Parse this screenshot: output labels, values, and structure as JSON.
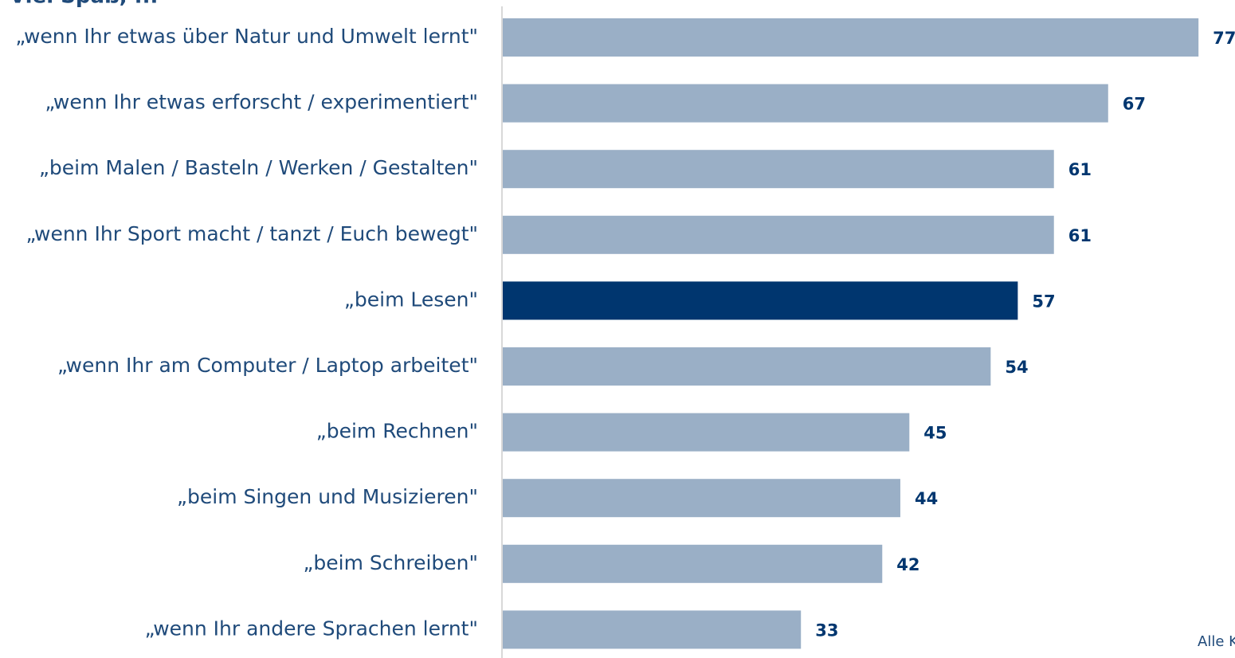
{
  "chart_data": {
    "type": "bar",
    "orientation": "horizontal",
    "title": "Viel Spaß, ...",
    "categories": [
      "„wenn Ihr etwas über Natur und Umwelt lernt\"",
      "„wenn Ihr etwas erforscht / experimentiert\"",
      "„beim Malen / Basteln / Werken / Gestalten\"",
      "„wenn Ihr Sport macht / tanzt / Euch bewegt\"",
      "„beim Lesen\"",
      "„wenn Ihr am Computer / Laptop arbeitet\"",
      "„beim Rechnen\"",
      "„beim Singen und Musizieren\"",
      "„beim Schreiben\"",
      "„wenn Ihr andere Sprachen lernt\""
    ],
    "values": [
      77,
      67,
      61,
      61,
      57,
      54,
      45,
      44,
      42,
      33
    ],
    "colors": [
      "#9aafc6",
      "#9aafc6",
      "#9aafc6",
      "#9aafc6",
      "#00366f",
      "#9aafc6",
      "#9aafc6",
      "#9aafc6",
      "#9aafc6",
      "#9aafc6"
    ],
    "note": "Alle K"
  }
}
